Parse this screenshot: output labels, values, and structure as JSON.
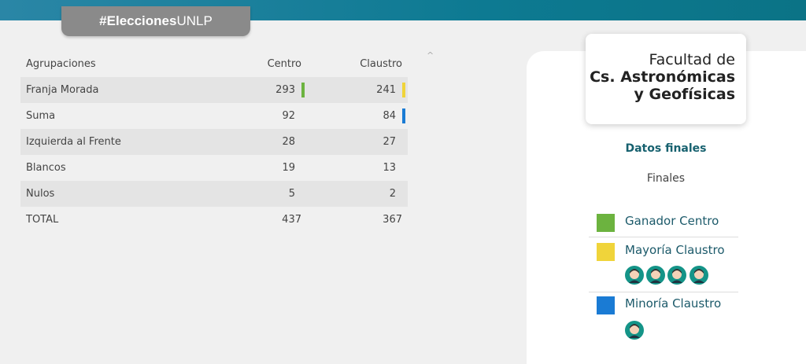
{
  "header": {
    "tag_bold": "#Elecciones",
    "tag_rest": "UNLP"
  },
  "table": {
    "columns": [
      "Agrupaciones",
      "Centro",
      "Claustro"
    ],
    "rows": [
      [
        "Franja Morada",
        "293",
        "241"
      ],
      [
        "Suma",
        "92",
        "84"
      ],
      [
        "Izquierda al Frente",
        "28",
        "27"
      ],
      [
        "Blancos",
        "19",
        "13"
      ],
      [
        "Nulos",
        "5",
        "2"
      ],
      [
        "TOTAL",
        "437",
        "367"
      ]
    ]
  },
  "panel": {
    "faculty_line1": "Facultad de",
    "faculty_line2": "Cs. Astronómicas",
    "faculty_line3": "y Geofísicas",
    "status": "Datos finales",
    "subtitle": "Finales",
    "legend": [
      "Ganador Centro",
      "Mayoría Claustro",
      "Minoría Claustro"
    ]
  }
}
